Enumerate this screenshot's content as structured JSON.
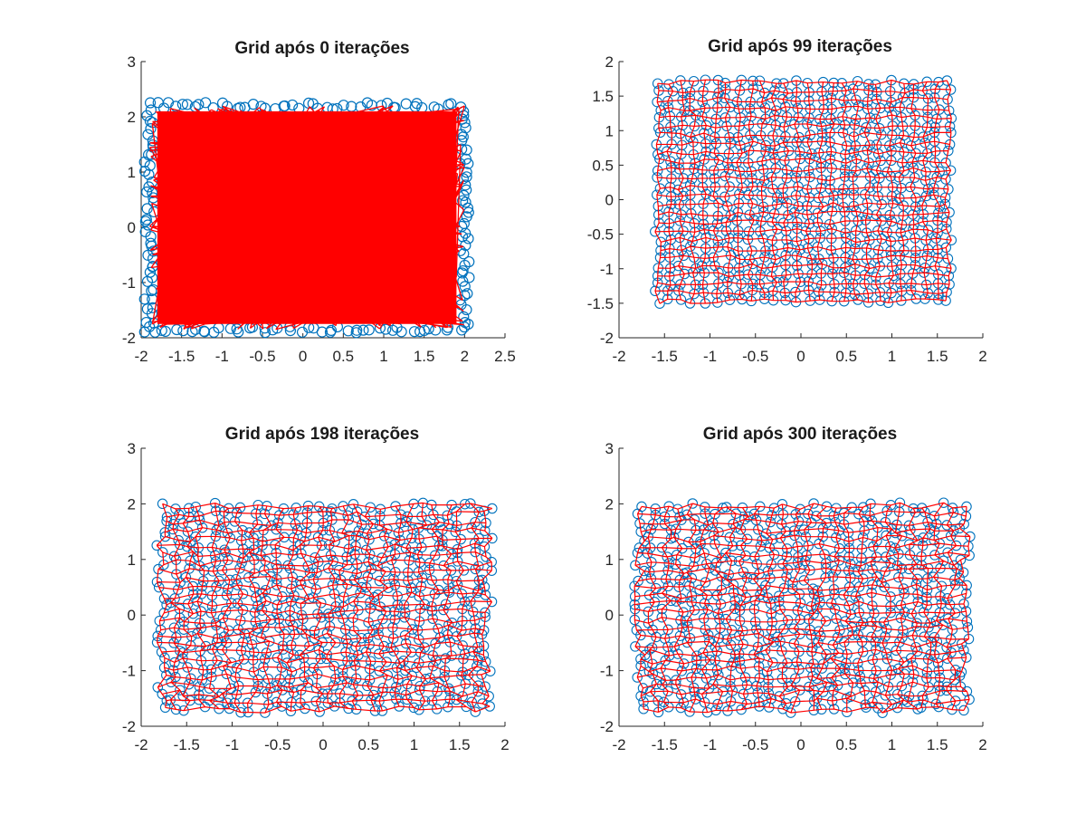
{
  "chart_data": [
    {
      "type": "scatter",
      "title": "Grid após 0 iterações",
      "xlabel": "",
      "ylabel": "",
      "xlim": [
        -2,
        2.5
      ],
      "ylim": [
        -2,
        3
      ],
      "xticks": [
        "-2",
        "-1.5",
        "-1",
        "-0.5",
        "0",
        "0.5",
        "1",
        "1.5",
        "2",
        "2.5"
      ],
      "yticks": [
        "-2",
        "-1",
        "0",
        "1",
        "2",
        "3"
      ],
      "grid": false,
      "node_extent": {
        "x": [
          -1.9,
          2.0
        ],
        "y": [
          -1.85,
          2.2
        ]
      },
      "series_style": {
        "nodes": "circle markers",
        "links": "solid line"
      },
      "colors": {
        "nodes": "#0072BD",
        "links": "#FF0000"
      },
      "state": "random"
    },
    {
      "type": "scatter",
      "title": "Grid após 99 iterações",
      "xlabel": "",
      "ylabel": "",
      "xlim": [
        -2,
        2
      ],
      "ylim": [
        -2,
        2
      ],
      "xticks": [
        "-2",
        "-1.5",
        "-1",
        "-0.5",
        "0",
        "0.5",
        "1",
        "1.5",
        "2"
      ],
      "yticks": [
        "-2",
        "-1.5",
        "-1",
        "-0.5",
        "0",
        "0.5",
        "1",
        "1.5",
        "2"
      ],
      "grid": false,
      "node_extent": {
        "x": [
          -1.65,
          1.7
        ],
        "y": [
          -1.55,
          1.92
        ]
      },
      "series_style": {
        "nodes": "circle markers",
        "links": "solid line"
      },
      "colors": {
        "nodes": "#0072BD",
        "links": "#FF0000"
      },
      "state": "organized"
    },
    {
      "type": "scatter",
      "title": "Grid após 198 iterações",
      "xlabel": "",
      "ylabel": "",
      "xlim": [
        -2,
        2
      ],
      "ylim": [
        -2,
        3
      ],
      "xticks": [
        "-2",
        "-1.5",
        "-1",
        "-0.5",
        "0",
        "0.5",
        "1",
        "1.5",
        "2"
      ],
      "yticks": [
        "-2",
        "-1",
        "0",
        "1",
        "2",
        "3"
      ],
      "grid": false,
      "node_extent": {
        "x": [
          -1.85,
          1.88
        ],
        "y": [
          -1.78,
          2.18
        ]
      },
      "series_style": {
        "nodes": "circle markers",
        "links": "solid line"
      },
      "colors": {
        "nodes": "#0072BD",
        "links": "#FF0000"
      },
      "state": "converged"
    },
    {
      "type": "scatter",
      "title": "Grid após 300 iterações",
      "xlabel": "",
      "ylabel": "",
      "xlim": [
        -2,
        2
      ],
      "ylim": [
        -2,
        3
      ],
      "xticks": [
        "-2",
        "-1.5",
        "-1",
        "-0.5",
        "0",
        "0.5",
        "1",
        "1.5",
        "2"
      ],
      "yticks": [
        "-2",
        "-1",
        "0",
        "1",
        "2",
        "3"
      ],
      "grid": false,
      "node_extent": {
        "x": [
          -1.85,
          1.88
        ],
        "y": [
          -1.78,
          2.18
        ]
      },
      "series_style": {
        "nodes": "circle markers",
        "links": "solid line"
      },
      "colors": {
        "nodes": "#0072BD",
        "links": "#FF0000"
      },
      "state": "converged"
    }
  ]
}
